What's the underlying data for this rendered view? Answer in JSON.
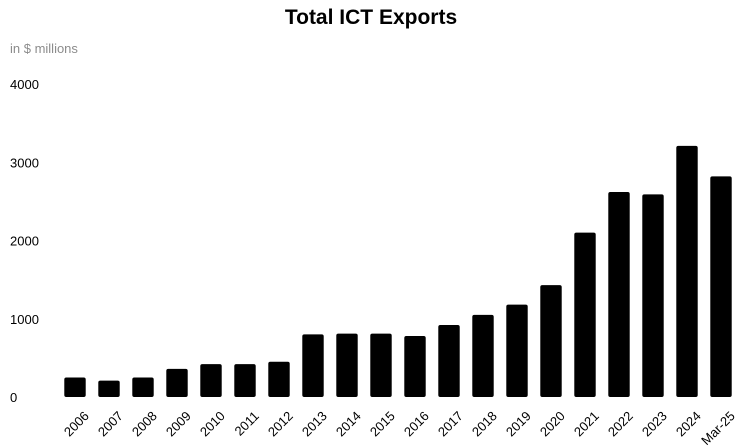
{
  "chart_data": {
    "type": "bar",
    "title": "Total ICT Exports",
    "unit_label": "in $ millions",
    "xlabel": "",
    "ylabel": "",
    "categories": [
      "2006",
      "2007",
      "2008",
      "2009",
      "2010",
      "2011",
      "2012",
      "2013",
      "2014",
      "2015",
      "2016",
      "2017",
      "2018",
      "2019",
      "2020",
      "2021",
      "2022",
      "2023",
      "2024",
      "Mar-25"
    ],
    "values": [
      250,
      210,
      250,
      360,
      420,
      420,
      450,
      800,
      810,
      810,
      780,
      920,
      1050,
      1180,
      1430,
      2100,
      2620,
      2590,
      3210,
      2820
    ],
    "ylim": [
      0,
      4000
    ],
    "yticks": [
      0,
      1000,
      2000,
      3000,
      4000
    ],
    "bar_color": "#000000",
    "grid": false,
    "legend": "none"
  }
}
